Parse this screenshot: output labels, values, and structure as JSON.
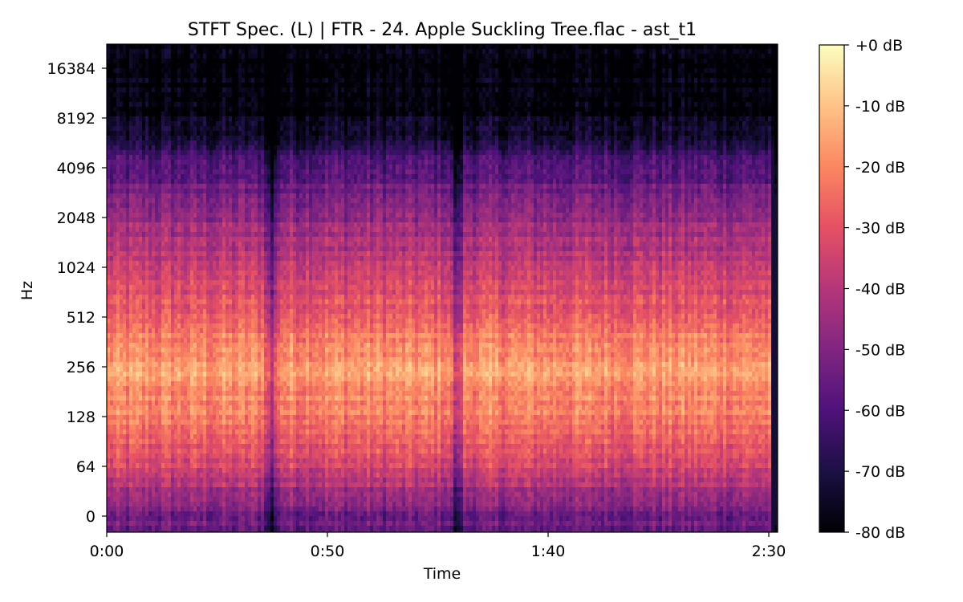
{
  "chart_data": {
    "type": "heatmap",
    "title": "STFT Spec. (L) | FTR - 24. Apple Suckling Tree.flac - ast_t1",
    "xlabel": "Time",
    "ylabel": "Hz",
    "x_scale": "time",
    "y_scale": "log2",
    "xlim_seconds": [
      0,
      152
    ],
    "x_ticks": [
      {
        "label": "0:00",
        "seconds": 0
      },
      {
        "label": "0:50",
        "seconds": 50
      },
      {
        "label": "1:40",
        "seconds": 100
      },
      {
        "label": "2:30",
        "seconds": 150
      }
    ],
    "y_ticks": [
      {
        "label": "0",
        "hz": 0
      },
      {
        "label": "64",
        "hz": 64
      },
      {
        "label": "128",
        "hz": 128
      },
      {
        "label": "256",
        "hz": 256
      },
      {
        "label": "512",
        "hz": 512
      },
      {
        "label": "1024",
        "hz": 1024
      },
      {
        "label": "2048",
        "hz": 2048
      },
      {
        "label": "4096",
        "hz": 4096
      },
      {
        "label": "8192",
        "hz": 8192
      },
      {
        "label": "16384",
        "hz": 16384
      }
    ],
    "colorbar": {
      "colormap": "magma",
      "range_db": [
        -80,
        0
      ],
      "ticks": [
        {
          "label": "+0 dB",
          "db": 0
        },
        {
          "label": "-10 dB",
          "db": -10
        },
        {
          "label": "-20 dB",
          "db": -20
        },
        {
          "label": "-30 dB",
          "db": -30
        },
        {
          "label": "-40 dB",
          "db": -40
        },
        {
          "label": "-50 dB",
          "db": -50
        },
        {
          "label": "-60 dB",
          "db": -60
        },
        {
          "label": "-70 dB",
          "db": -70
        },
        {
          "label": "-80 dB",
          "db": -80
        }
      ]
    },
    "magma_stops": [
      "#000004",
      "#1c1044",
      "#4f127b",
      "#812581",
      "#b5367a",
      "#e55064",
      "#fb8761",
      "#fec287",
      "#fcfdbf"
    ],
    "grid": false,
    "approx_band_levels_db": [
      {
        "hz": 0,
        "db": -55
      },
      {
        "hz": 64,
        "db": -33
      },
      {
        "hz": 128,
        "db": -22
      },
      {
        "hz": 256,
        "db": -15
      },
      {
        "hz": 512,
        "db": -27
      },
      {
        "hz": 1024,
        "db": -38
      },
      {
        "hz": 2048,
        "db": -46
      },
      {
        "hz": 4096,
        "db": -60
      },
      {
        "hz": 8192,
        "db": -78
      },
      {
        "hz": 16384,
        "db": -80
      }
    ],
    "quiet_times_seconds": [
      37,
      79,
      151.5
    ]
  }
}
